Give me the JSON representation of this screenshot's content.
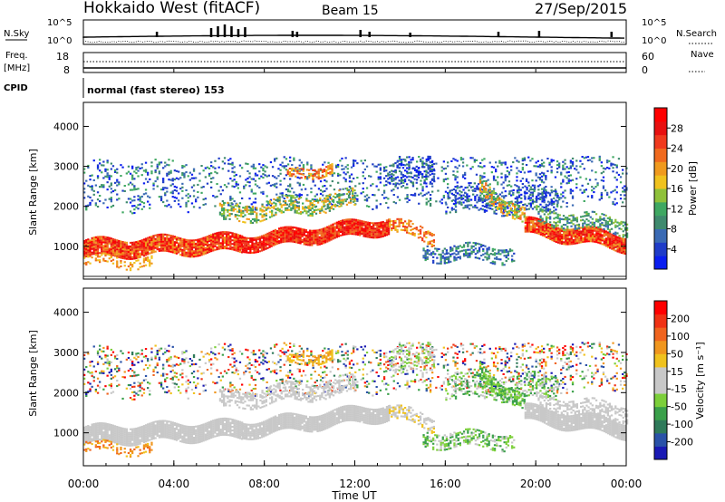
{
  "header": {
    "station": "Hokkaido West (fitACF)",
    "beam": "Beam 15",
    "date": "27/Sep/2015"
  },
  "summary": {
    "nsky_label": "N.Sky",
    "nsearch_label": "N.Search",
    "noise_axis_ticks": [
      "10^5",
      "10^0"
    ],
    "freq_label_1": "Freq.",
    "freq_label_2": "[MHz]",
    "freq_axis_ticks": [
      "18",
      "8"
    ],
    "nave_label": "Nave",
    "nave_axis_ticks": [
      "60",
      "0"
    ],
    "cpid_label": "CPID",
    "cpid_text": "normal (fast stereo) 153"
  },
  "xaxis": {
    "label": "Time UT",
    "ticks": [
      "00:00",
      "04:00",
      "08:00",
      "12:00",
      "16:00",
      "20:00",
      "00:00"
    ]
  },
  "chart_data": [
    {
      "type": "heatmap",
      "panel": "power",
      "ylabel": "Slant Range [km]",
      "xlabel": "Time UT",
      "x_range_hours": [
        0,
        24
      ],
      "ylim": [
        180,
        4600
      ],
      "yticks": [
        1000,
        2000,
        3000,
        4000
      ],
      "colorbar": {
        "label": "Power [dB]",
        "ticks": [
          "4",
          "8",
          "12",
          "16",
          "20",
          "24",
          "28"
        ],
        "colors": [
          "#0a1ef0",
          "#1f3cc8",
          "#3a6ab4",
          "#3f8a6e",
          "#3fa862",
          "#8fc13a",
          "#f0c21e",
          "#f09a1e",
          "#f06a1e",
          "#f03a1e",
          "#e81010",
          "#ff0000"
        ]
      }
    },
    {
      "type": "heatmap",
      "panel": "velocity",
      "ylabel": "Slant Range [km]",
      "xlabel": "Time UT",
      "x_range_hours": [
        0,
        24
      ],
      "ylim": [
        180,
        4600
      ],
      "yticks": [
        1000,
        2000,
        3000,
        4000
      ],
      "colorbar": {
        "label": "Velocity [m s⁻¹]",
        "ticks": [
          "200",
          "100",
          "50",
          "15",
          "-15",
          "-50",
          "-100",
          "-200"
        ],
        "colors": [
          "#1a1ab4",
          "#2a52a8",
          "#2f7a5a",
          "#3aa04a",
          "#7ccf3a",
          "#c8c8c8",
          "#c8c8c8",
          "#f0c21e",
          "#f0961e",
          "#f0641e",
          "#f03214",
          "#ff0000"
        ]
      }
    }
  ]
}
